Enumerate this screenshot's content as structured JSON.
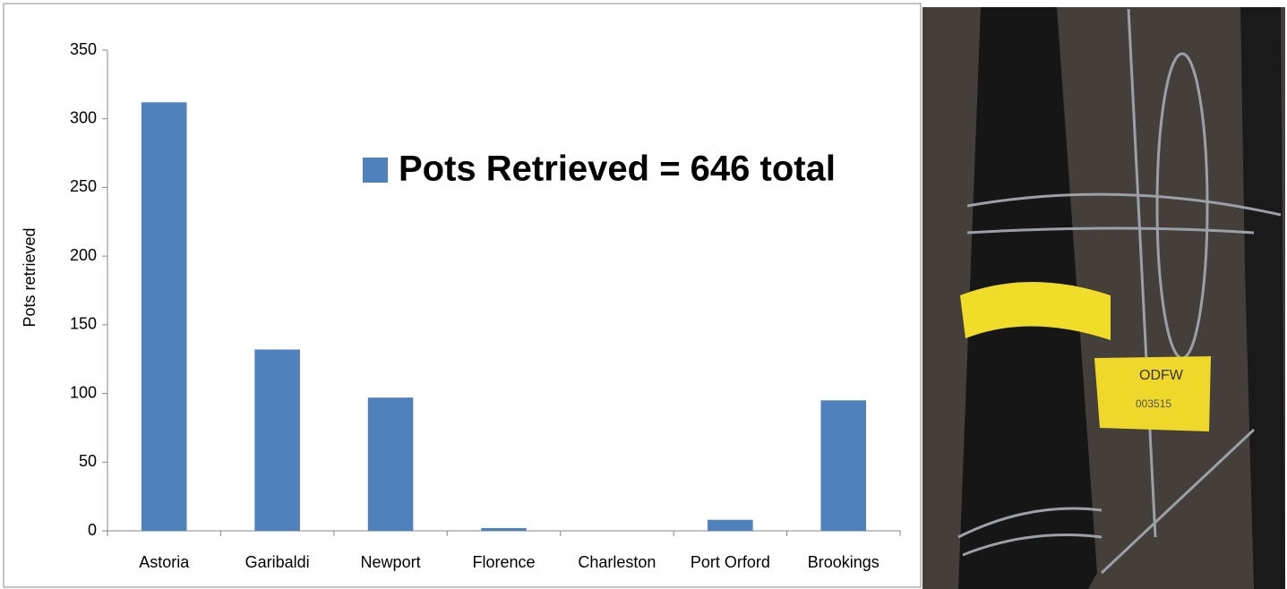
{
  "chart_data": {
    "type": "bar",
    "y_label": "Pots retrieved",
    "categories": [
      "Astoria",
      "Garibaldi",
      "Newport",
      "Florence",
      "Charleston",
      "Port Orford",
      "Brookings"
    ],
    "series": [
      {
        "name": "Pots Retrieved = 646 total",
        "color": "#4f81bd",
        "values": [
          312,
          132,
          97,
          2,
          0,
          8,
          95
        ]
      }
    ],
    "ylim": [
      0,
      350
    ],
    "yticks": [
      0,
      50,
      100,
      150,
      200,
      250,
      300,
      350
    ],
    "grid": false
  }
}
